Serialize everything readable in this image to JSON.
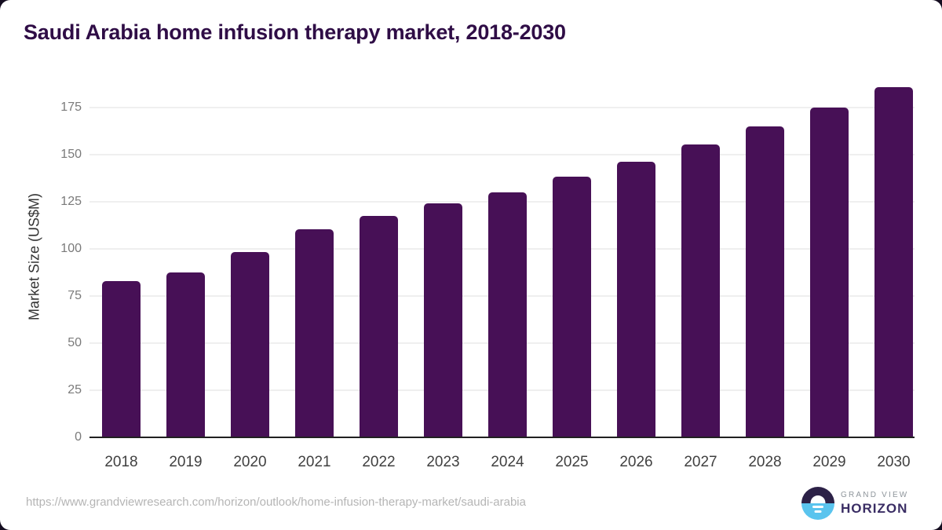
{
  "title": "Saudi Arabia home infusion therapy market, 2018-2030",
  "chart_data": {
    "type": "bar",
    "title": "Saudi Arabia home infusion therapy market, 2018-2030",
    "categories": [
      "2018",
      "2019",
      "2020",
      "2021",
      "2022",
      "2023",
      "2024",
      "2025",
      "2026",
      "2027",
      "2028",
      "2029",
      "2030"
    ],
    "values": [
      83.2,
      87.8,
      98.8,
      110.7,
      117.8,
      124.5,
      130.5,
      138.8,
      146.5,
      156.0,
      165.3,
      175.5,
      186.3
    ],
    "xlabel": "",
    "ylabel": "Market Size (US$M)",
    "yticks": [
      0,
      25,
      50,
      75,
      100,
      125,
      150,
      175
    ],
    "ylim": [
      0,
      193
    ],
    "grid": true,
    "legend": false,
    "bar_color": "#471056"
  },
  "colors": {
    "bar": "#471056",
    "title": "#2f0d46",
    "gridline": "#efefef",
    "axis_line": "#212121",
    "y_tick_text": "#7a7a7a",
    "x_tick_text": "#404040",
    "url_text": "#b5b5b5",
    "logo_dark": "#2c2147",
    "logo_blue": "#5ac4ee",
    "page_background": "#140d20"
  },
  "footer": {
    "source_url": "https://www.grandviewresearch.com/horizon/outlook/home-infusion-therapy-market/saudi-arabia",
    "logo": {
      "line1": "GRAND VIEW",
      "line2": "HORIZON"
    }
  }
}
